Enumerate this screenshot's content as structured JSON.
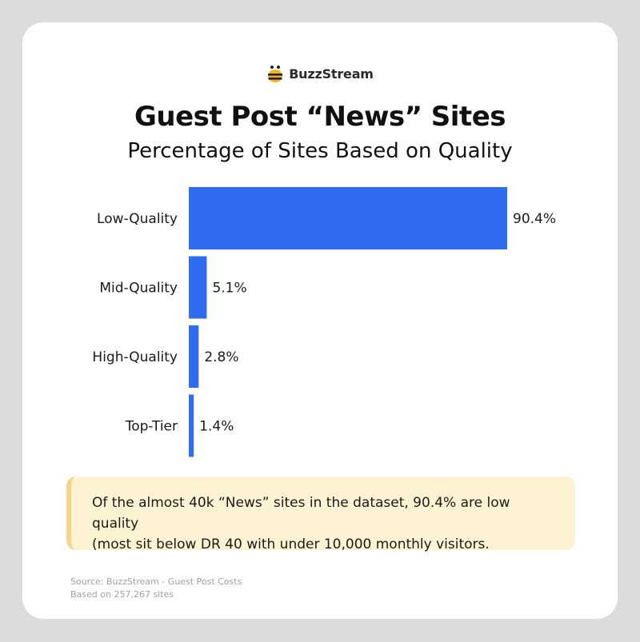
{
  "brand": {
    "name": "BuzzStream",
    "icon": "bee-icon"
  },
  "header": {
    "title": "Guest Post “News” Sites",
    "subtitle": "Percentage of Sites Based on Quality"
  },
  "chart_data": {
    "type": "bar",
    "orientation": "horizontal",
    "title": "Guest Post “News” Sites",
    "subtitle": "Percentage of Sites Based on Quality",
    "categories": [
      "Low-Quality",
      "Mid-Quality",
      "High-Quality",
      "Top-Tier"
    ],
    "values": [
      90.4,
      5.1,
      2.8,
      1.4
    ],
    "value_labels": [
      "90.4%",
      "5.1%",
      "2.8%",
      "1.4%"
    ],
    "unit": "%",
    "xlim": [
      0,
      90.4
    ],
    "grid": false,
    "legend": "none",
    "bar_color": "#2f6cf0"
  },
  "callout": {
    "line1": "Of the almost 40k “News” sites in the dataset, 90.4% are low quality",
    "line2": "(most sit below DR 40 with under 10,000 monthly visitors."
  },
  "footer": {
    "source": "Source: BuzzStream - Guest Post Costs",
    "basis": "Based on 257,267 sites"
  },
  "colors": {
    "background": "#dcdcdc",
    "card": "#ffffff",
    "bar": "#2f6cf0",
    "callout_bg": "#fdf3d3",
    "callout_border": "#f5d58a",
    "bee_yellow": "#f2b31b"
  }
}
